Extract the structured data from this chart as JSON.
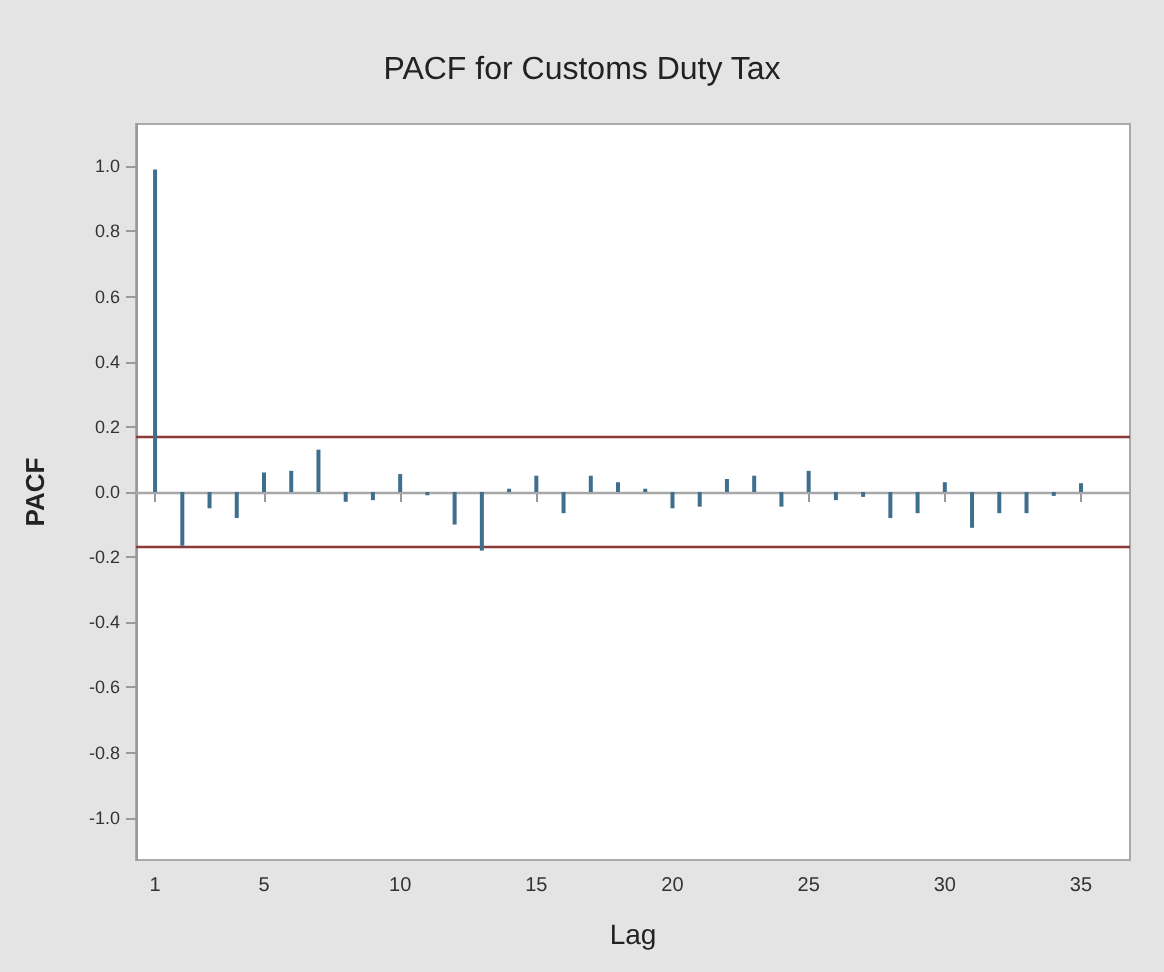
{
  "chart_data": {
    "type": "bar",
    "title": "PACF for Customs Duty Tax",
    "xlabel": "Lag",
    "ylabel": "PACF",
    "x": [
      1,
      2,
      3,
      4,
      5,
      6,
      7,
      8,
      9,
      10,
      11,
      12,
      13,
      14,
      15,
      16,
      17,
      18,
      19,
      20,
      21,
      22,
      23,
      24,
      25,
      26,
      27,
      28,
      29,
      30,
      31,
      32,
      33,
      34,
      35
    ],
    "values": [
      0.99,
      -0.165,
      -0.05,
      -0.08,
      0.06,
      0.065,
      0.13,
      -0.03,
      -0.025,
      0.055,
      -0.01,
      -0.1,
      -0.18,
      0.01,
      0.05,
      -0.065,
      0.05,
      0.03,
      0.01,
      -0.05,
      -0.045,
      0.04,
      0.05,
      -0.045,
      0.065,
      -0.025,
      -0.015,
      -0.08,
      -0.065,
      0.03,
      -0.11,
      -0.065,
      -0.065,
      -0.012,
      0.027
    ],
    "color": "#3f6f8c",
    "xlim": [
      0.3,
      36.8
    ],
    "xticks": [
      1,
      5,
      10,
      15,
      20,
      25,
      30,
      35
    ],
    "ylim": [
      -1.13,
      1.13
    ],
    "yticks": [
      {
        "value": -1.0,
        "label": "-1.0"
      },
      {
        "value": -0.8,
        "label": "-0.8"
      },
      {
        "value": -0.6,
        "label": "-0.6"
      },
      {
        "value": -0.4,
        "label": "-0.4"
      },
      {
        "value": -0.2,
        "label": "-0.2"
      },
      {
        "value": 0,
        "label": "0.0"
      },
      {
        "value": 0.2,
        "label": "0.2"
      },
      {
        "value": 0.4,
        "label": "0.4"
      },
      {
        "value": 0.6,
        "label": "0.6"
      },
      {
        "value": 0.8,
        "label": "0.8"
      },
      {
        "value": 1.0,
        "label": "1.0"
      }
    ],
    "ref_lines": [
      {
        "axis": "y",
        "value": 0.175,
        "color": "#8b3a3a"
      },
      {
        "axis": "y",
        "value": -0.17,
        "color": "#8b3a3a"
      },
      {
        "axis": "y",
        "value": 0,
        "color": "#a8a8a8"
      }
    ],
    "grid": false
  }
}
